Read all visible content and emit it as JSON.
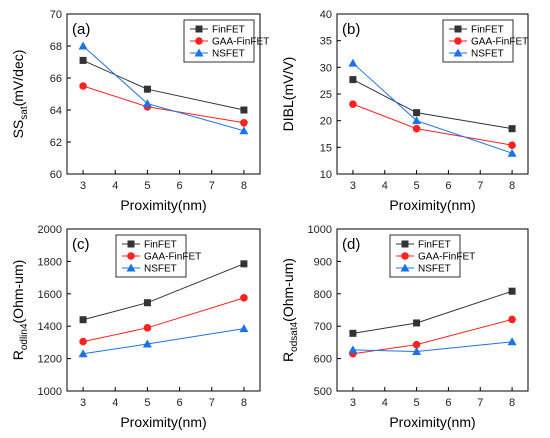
{
  "chart_data": [
    {
      "type": "line",
      "panel_label": "(a)",
      "ylabel": {
        "main": "SS",
        "sub": "sat",
        "tail": "(mV/dec)"
      },
      "xlabel": "Proximity(nm)",
      "x": [
        3,
        5,
        8
      ],
      "xlim": [
        2.5,
        8.5
      ],
      "xticks": [
        "3",
        "4",
        "5",
        "6",
        "7",
        "8"
      ],
      "ylim": [
        60,
        70
      ],
      "yticks": [
        "60",
        "62",
        "64",
        "66",
        "68",
        "70"
      ],
      "legend_position": "top-right",
      "series": [
        {
          "name": "FinFET",
          "values": [
            67.1,
            65.3,
            64.0
          ]
        },
        {
          "name": "GAA-FinFET",
          "values": [
            65.5,
            64.2,
            63.2
          ]
        },
        {
          "name": "NSFET",
          "values": [
            68.0,
            64.4,
            62.7
          ]
        }
      ]
    },
    {
      "type": "line",
      "panel_label": "(b)",
      "ylabel": {
        "main": "DIBL",
        "sub": "",
        "tail": "(mV/V)"
      },
      "xlabel": "Proximity(nm)",
      "x": [
        3,
        5,
        8
      ],
      "xlim": [
        2.5,
        8.5
      ],
      "xticks": [
        "3",
        "4",
        "5",
        "6",
        "7",
        "8"
      ],
      "ylim": [
        10,
        40
      ],
      "yticks": [
        "10",
        "15",
        "20",
        "25",
        "30",
        "35",
        "40"
      ],
      "legend_position": "top-right",
      "series": [
        {
          "name": "FinFET",
          "values": [
            27.7,
            21.5,
            18.5
          ]
        },
        {
          "name": "GAA-FinFET",
          "values": [
            23.1,
            18.5,
            15.4
          ]
        },
        {
          "name": "NSFET",
          "values": [
            30.8,
            20.0,
            13.9
          ]
        }
      ]
    },
    {
      "type": "line",
      "panel_label": "(c)",
      "ylabel": {
        "main": "R",
        "sub": "odlin4",
        "tail": "(Ohm-um)"
      },
      "xlabel": "Proximity(nm)",
      "x": [
        3,
        5,
        8
      ],
      "xlim": [
        2.5,
        8.5
      ],
      "xticks": [
        "3",
        "4",
        "5",
        "6",
        "7",
        "8"
      ],
      "ylim": [
        1000,
        2000
      ],
      "yticks": [
        "1000",
        "1200",
        "1400",
        "1600",
        "1800",
        "2000"
      ],
      "legend_position": "top-left",
      "series": [
        {
          "name": "FinFET",
          "values": [
            1440,
            1545,
            1785
          ]
        },
        {
          "name": "GAA-FinFET",
          "values": [
            1305,
            1390,
            1575
          ]
        },
        {
          "name": "NSFET",
          "values": [
            1230,
            1290,
            1385
          ]
        }
      ]
    },
    {
      "type": "line",
      "panel_label": "(d)",
      "ylabel": {
        "main": "R",
        "sub": "odsat4",
        "tail": "(Ohm-um)"
      },
      "xlabel": "Proximity(nm)",
      "x": [
        3,
        5,
        8
      ],
      "xlim": [
        2.5,
        8.5
      ],
      "xticks": [
        "3",
        "4",
        "5",
        "6",
        "7",
        "8"
      ],
      "ylim": [
        500,
        1000
      ],
      "yticks": [
        "500",
        "600",
        "700",
        "800",
        "900",
        "1000"
      ],
      "legend_position": "top-left",
      "series": [
        {
          "name": "FinFET",
          "values": [
            678,
            710,
            808
          ]
        },
        {
          "name": "GAA-FinFET",
          "values": [
            615,
            643,
            721
          ]
        },
        {
          "name": "NSFET",
          "values": [
            627,
            622,
            652
          ]
        }
      ]
    }
  ],
  "style": {
    "series_colors": [
      "#333333",
      "#ff2020",
      "#1a73e8"
    ],
    "series_markers": [
      "square",
      "circle",
      "triangle"
    ]
  }
}
